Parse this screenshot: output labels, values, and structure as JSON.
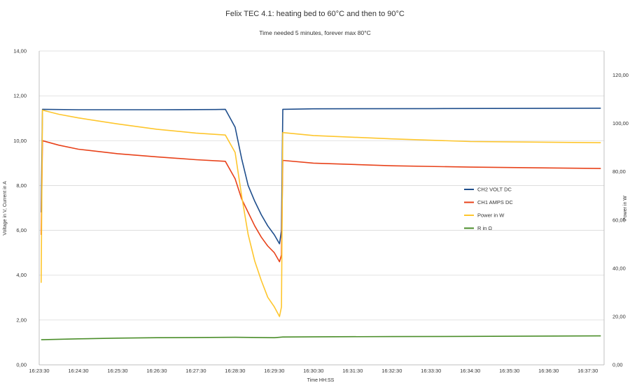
{
  "chart_data": {
    "type": "line",
    "title": "Felix TEC 4.1: heating bed to 60°C and then to 90°C",
    "subtitle": "Time needed 5 minutes, forever max 80°C",
    "xlabel": "Time HH:SS",
    "ylabel": "Voltage in V, Current in A",
    "y2label": "Power in W",
    "xlim": [
      "16:23:30",
      "16:37:55"
    ],
    "ylim": [
      0,
      14
    ],
    "y2lim": [
      0,
      130
    ],
    "x_ticks": [
      "16:23:30",
      "16:24:30",
      "16:25:30",
      "16:26:30",
      "16:27:30",
      "16:28:30",
      "16:29:30",
      "16:30:30",
      "16:31:30",
      "16:32:30",
      "16:33:30",
      "16:34:30",
      "16:35:30",
      "16:36:30",
      "16:37:30"
    ],
    "y_ticks": [
      "0,00",
      "2,00",
      "4,00",
      "6,00",
      "8,00",
      "10,00",
      "12,00",
      "14,00"
    ],
    "y2_ticks": [
      "0,00",
      "20,00",
      "40,00",
      "60,00",
      "80,00",
      "100,00",
      "120,00"
    ],
    "grid": true,
    "legend_position": "right",
    "series": [
      {
        "name": "CH2 VOLT DC",
        "axis": "left",
        "color": "#1f4e8c",
        "x": [
          "16:23:33",
          "16:23:35",
          "16:24:30",
          "16:26:30",
          "16:28:00",
          "16:28:15",
          "16:28:30",
          "16:28:40",
          "16:28:50",
          "16:29:00",
          "16:29:10",
          "16:29:20",
          "16:29:30",
          "16:29:38",
          "16:29:41",
          "16:29:43",
          "16:30:30",
          "16:33:30",
          "16:37:50"
        ],
        "y": [
          6.8,
          11.4,
          11.38,
          11.38,
          11.39,
          11.4,
          10.6,
          9.2,
          8.0,
          7.3,
          6.7,
          6.2,
          5.8,
          5.4,
          6.0,
          11.4,
          11.42,
          11.43,
          11.45
        ]
      },
      {
        "name": "CH1 AMPS DC",
        "axis": "left",
        "color": "#e8421a",
        "x": [
          "16:23:33",
          "16:23:35",
          "16:24:00",
          "16:24:30",
          "16:25:30",
          "16:26:30",
          "16:27:30",
          "16:28:15",
          "16:28:30",
          "16:28:40",
          "16:28:50",
          "16:29:00",
          "16:29:10",
          "16:29:20",
          "16:29:30",
          "16:29:38",
          "16:29:41",
          "16:29:43",
          "16:30:30",
          "16:32:30",
          "16:34:30",
          "16:37:50"
        ],
        "y": [
          5.8,
          10.0,
          9.8,
          9.62,
          9.42,
          9.28,
          9.15,
          9.08,
          8.3,
          7.4,
          6.8,
          6.2,
          5.7,
          5.3,
          5.0,
          4.6,
          4.9,
          9.12,
          9.0,
          8.88,
          8.82,
          8.76
        ]
      },
      {
        "name": "Power in W",
        "axis": "right",
        "color": "#fec62d",
        "x": [
          "16:23:33",
          "16:23:35",
          "16:24:00",
          "16:24:30",
          "16:25:30",
          "16:26:30",
          "16:27:30",
          "16:28:15",
          "16:28:30",
          "16:28:40",
          "16:28:50",
          "16:29:00",
          "16:29:10",
          "16:29:20",
          "16:29:30",
          "16:29:38",
          "16:29:41",
          "16:29:43",
          "16:30:30",
          "16:32:30",
          "16:34:30",
          "16:37:50"
        ],
        "y": [
          34,
          105.5,
          103.8,
          102.3,
          99.8,
          97.6,
          96.0,
          95.2,
          88.0,
          70.0,
          54.0,
          43.0,
          35.0,
          28.0,
          24.0,
          20.0,
          24.0,
          96.2,
          95.0,
          93.6,
          92.5,
          92.0
        ]
      },
      {
        "name": "R in Ω",
        "axis": "left",
        "color": "#4b8e2a",
        "x": [
          "16:23:33",
          "16:24:30",
          "16:25:30",
          "16:26:30",
          "16:27:30",
          "16:28:30",
          "16:29:30",
          "16:29:43",
          "16:30:30",
          "16:32:30",
          "16:34:30",
          "16:37:50"
        ],
        "y": [
          1.12,
          1.16,
          1.19,
          1.21,
          1.22,
          1.23,
          1.21,
          1.24,
          1.25,
          1.26,
          1.27,
          1.29
        ]
      }
    ]
  }
}
